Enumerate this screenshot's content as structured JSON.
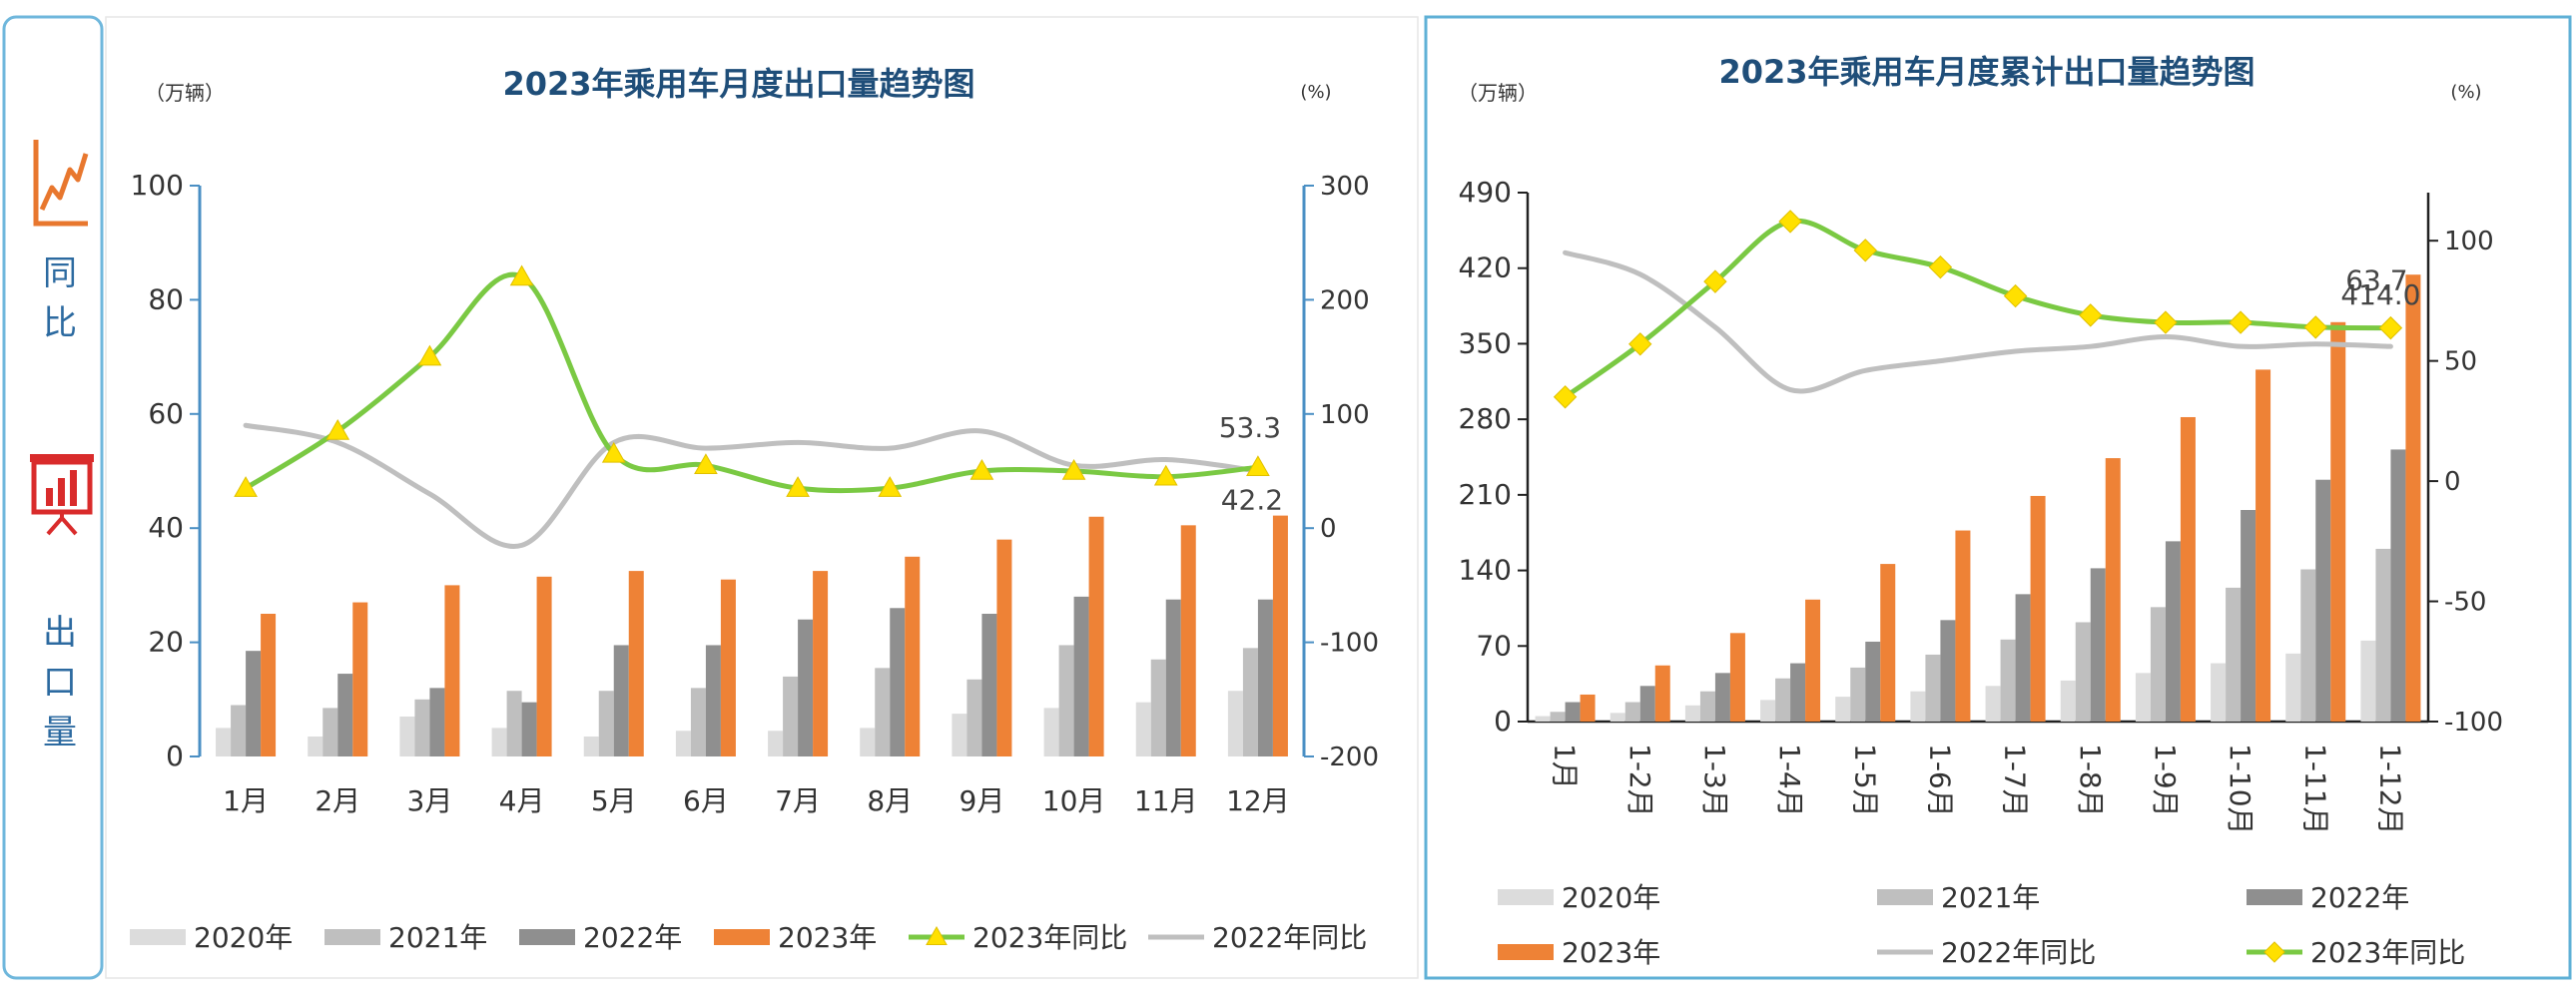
{
  "sidebar": {
    "yoy_label": [
      "同",
      "比"
    ],
    "export_label": [
      "出",
      "口",
      "量"
    ],
    "colors": {
      "yoy_icon": "#e8772e",
      "export_icon": "#d92b2b",
      "label_text": "#2c6aa0"
    }
  },
  "colors": {
    "y2020": "#dcdcdc",
    "y2021": "#bfbfbf",
    "y2022": "#8f8f8f",
    "y2023": "#ee8236",
    "yoy2023_line": "#7ac943",
    "yoy2023_marker": "#ffe000",
    "yoy2022_line": "#bfbfbf",
    "title": "#1f4e79",
    "axis_right": "#4a8fc4",
    "panel_border": "#5fb0d6"
  },
  "chart_data": [
    {
      "type": "bar",
      "title": "2023年乘用车月度出口量趋势图",
      "ylabel_left": "（万辆）",
      "ylabel_right": "(%)",
      "categories": [
        "1月",
        "2月",
        "3月",
        "4月",
        "5月",
        "6月",
        "7月",
        "8月",
        "9月",
        "10月",
        "11月",
        "12月"
      ],
      "ylim_left": [
        0,
        100
      ],
      "yticks_left": [
        0,
        20,
        40,
        60,
        80,
        100
      ],
      "ylim_right": [
        -200,
        300
      ],
      "yticks_right": [
        -200,
        -100,
        0,
        100,
        200,
        300
      ],
      "series": [
        {
          "name": "2020年",
          "values": [
            5,
            3.5,
            7,
            5,
            3.5,
            4.5,
            4.5,
            5,
            7.5,
            8.5,
            9.5,
            11.5
          ]
        },
        {
          "name": "2021年",
          "values": [
            9,
            8.5,
            10,
            11.5,
            11.5,
            12,
            14,
            15.5,
            13.5,
            19.5,
            17,
            19
          ]
        },
        {
          "name": "2022年",
          "values": [
            18.5,
            14.5,
            12,
            9.5,
            19.5,
            19.5,
            24,
            26,
            25,
            28,
            27.5,
            27.5
          ]
        },
        {
          "name": "2023年",
          "values": [
            25,
            27,
            30,
            31.5,
            32.5,
            31,
            32.5,
            35,
            38,
            42,
            40.5,
            42.2
          ]
        }
      ],
      "lines": [
        {
          "name": "2023年同比",
          "values": [
            35,
            85,
            150,
            220,
            65,
            55,
            35,
            35,
            50,
            50,
            45,
            53.3
          ]
        },
        {
          "name": "2022年同比",
          "values": [
            90,
            75,
            30,
            -15,
            75,
            70,
            75,
            70,
            85,
            55,
            60,
            50
          ]
        }
      ],
      "data_labels": {
        "bar_last": "42.2",
        "line_last": "53.3"
      },
      "legend": [
        "2020年",
        "2021年",
        "2022年",
        "2023年",
        "2023年同比",
        "2022年同比"
      ],
      "legend_position": "bottom"
    },
    {
      "type": "bar",
      "title": "2023年乘用车月度累计出口量趋势图",
      "ylabel_left": "（万辆）",
      "ylabel_right": "(%)",
      "categories": [
        "1月",
        "1-2月",
        "1-3月",
        "1-4月",
        "1-5月",
        "1-6月",
        "1-7月",
        "1-8月",
        "1-9月",
        "1-10月",
        "1-11月",
        "1-12月"
      ],
      "ylim_left": [
        0,
        490
      ],
      "yticks_left": [
        0,
        70,
        140,
        210,
        280,
        350,
        420,
        490
      ],
      "ylim_right": [
        -100,
        120
      ],
      "yticks_right": [
        -100,
        -50,
        0,
        50,
        100
      ],
      "series": [
        {
          "name": "2020年",
          "values": [
            5,
            8,
            15,
            20,
            23,
            28,
            33,
            38,
            45,
            54,
            63,
            75
          ]
        },
        {
          "name": "2021年",
          "values": [
            9,
            18,
            28,
            40,
            50,
            62,
            76,
            92,
            106,
            124,
            141,
            160
          ]
        },
        {
          "name": "2022年",
          "values": [
            18,
            33,
            45,
            54,
            74,
            94,
            118,
            142,
            167,
            196,
            224,
            252
          ]
        },
        {
          "name": "2023年",
          "values": [
            25,
            52,
            82,
            113,
            146,
            177,
            209,
            244,
            282,
            326,
            370,
            414
          ]
        }
      ],
      "lines": [
        {
          "name": "2022年同比",
          "values": [
            95,
            86,
            64,
            38,
            46,
            50,
            54,
            56,
            60,
            56,
            57,
            56
          ]
        },
        {
          "name": "2023年同比",
          "values": [
            35,
            57,
            83,
            108,
            96,
            89,
            77,
            69,
            66,
            66,
            64,
            63.7
          ]
        }
      ],
      "data_labels": {
        "bar_last": "414.0",
        "line_last": "63.7"
      },
      "legend": [
        "2020年",
        "2021年",
        "2022年",
        "2023年",
        "2022年同比",
        "2023年同比"
      ],
      "legend_position": "bottom"
    }
  ]
}
